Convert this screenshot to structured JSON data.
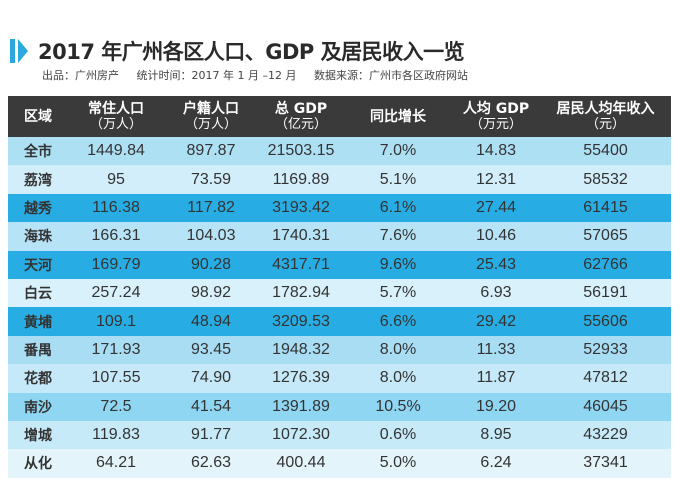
{
  "title": "2017 年广州各区人口、GDP 及居民收入一览",
  "subtitle": {
    "publisher": "出品：广州房产",
    "period": "统计时间：2017 年 1 月 –12 月",
    "source": "数据来源：广州市各区政府网站"
  },
  "headers": [
    {
      "label": "区域",
      "unit": ""
    },
    {
      "label": "常住人口",
      "unit": "（万人）"
    },
    {
      "label": "户籍人口",
      "unit": "（万人）"
    },
    {
      "label": "总 GDP",
      "unit": "（亿元）"
    },
    {
      "label": "同比增长",
      "unit": ""
    },
    {
      "label": "人均 GDP",
      "unit": "（万元）"
    },
    {
      "label": "居民人均年收入",
      "unit": "（元）"
    }
  ],
  "rows": [
    {
      "cells": [
        "全市",
        "1449.84",
        "897.87",
        "21503.15",
        "7.0%",
        "14.83",
        "55400"
      ],
      "color": "#aee0f4"
    },
    {
      "cells": [
        "荔湾",
        "95",
        "73.59",
        "1169.89",
        "5.1%",
        "12.31",
        "58532"
      ],
      "color": "#d2eefa"
    },
    {
      "cells": [
        "越秀",
        "116.38",
        "117.82",
        "3193.42",
        "6.1%",
        "27.44",
        "61415"
      ],
      "color": "#27ade3"
    },
    {
      "cells": [
        "海珠",
        "166.31",
        "104.03",
        "1740.31",
        "7.6%",
        "10.46",
        "57065"
      ],
      "color": "#b6e3f6"
    },
    {
      "cells": [
        "天河",
        "169.79",
        "90.28",
        "4317.71",
        "9.6%",
        "25.43",
        "62766"
      ],
      "color": "#27ade3"
    },
    {
      "cells": [
        "白云",
        "257.24",
        "98.92",
        "1782.94",
        "5.7%",
        "6.93",
        "56191"
      ],
      "color": "#d9f1fb"
    },
    {
      "cells": [
        "黄埔",
        "109.1",
        "48.94",
        "3209.53",
        "6.6%",
        "29.42",
        "55606"
      ],
      "color": "#27ade3"
    },
    {
      "cells": [
        "番禺",
        "171.93",
        "93.45",
        "1948.32",
        "8.0%",
        "11.33",
        "52933"
      ],
      "color": "#a9ddf3"
    },
    {
      "cells": [
        "花都",
        "107.55",
        "74.90",
        "1276.39",
        "8.0%",
        "11.87",
        "47812"
      ],
      "color": "#c5e9f8"
    },
    {
      "cells": [
        "南沙",
        "72.5",
        "41.54",
        "1391.89",
        "10.5%",
        "19.20",
        "46045"
      ],
      "color": "#8fd6f3"
    },
    {
      "cells": [
        "增城",
        "119.83",
        "91.77",
        "1072.30",
        "0.6%",
        "8.95",
        "43229"
      ],
      "color": "#c7eaf8"
    },
    {
      "cells": [
        "从化",
        "64.21",
        "62.63",
        "400.44",
        "5.0%",
        "6.24",
        "37341"
      ],
      "color": "#e3f4fb"
    }
  ]
}
